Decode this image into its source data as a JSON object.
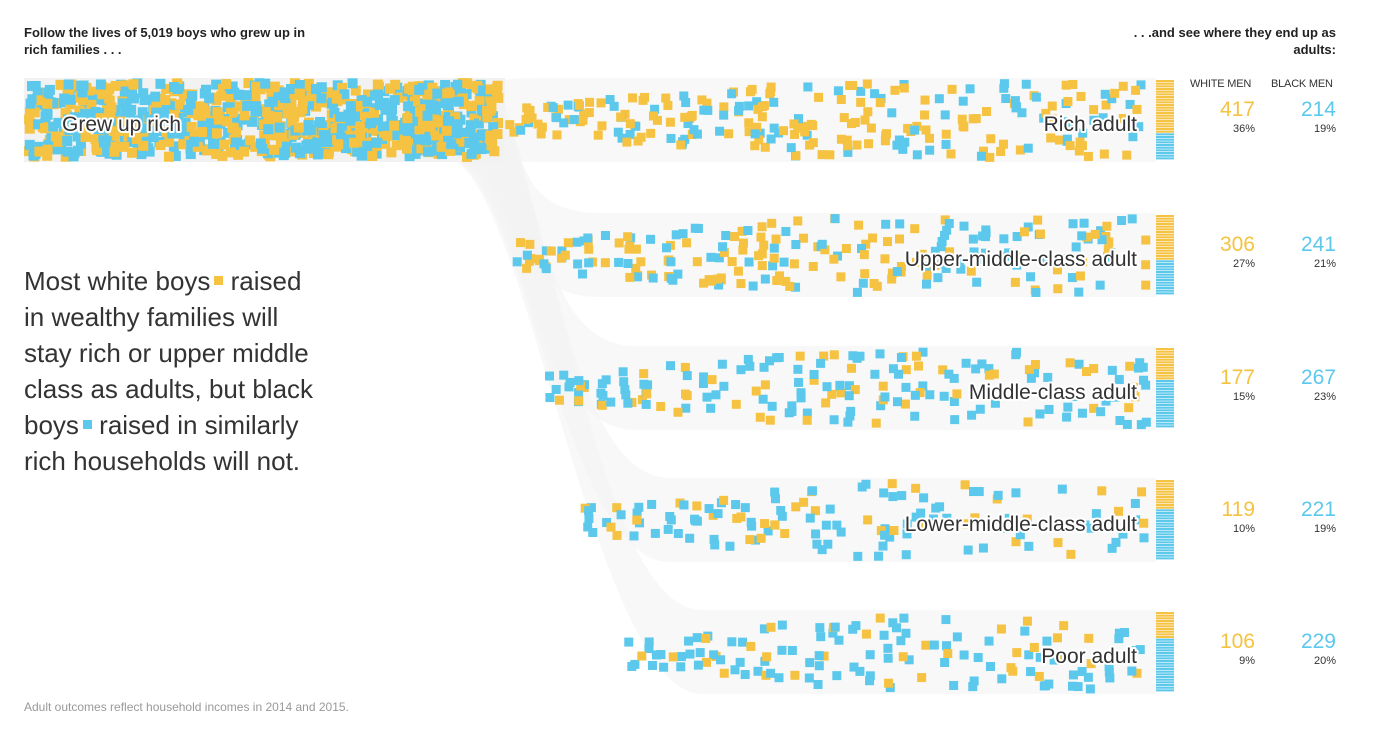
{
  "header": {
    "left_prefix": "Follow the lives of",
    "left_count": "5,019",
    "left_suffix": "boys who grew up in rich families . . .",
    "right": ". . .and see where they end up as adults:"
  },
  "columns": {
    "white": "WHITE MEN",
    "black": "BLACK MEN"
  },
  "story": {
    "part1": "Most white boys",
    "part2": "raised in wealthy families will stay rich or upper middle class as adults, but black boys",
    "part3": "raised in similarly rich households will not."
  },
  "note": "Adult outcomes reflect household incomes in 2014 and 2015.",
  "colors": {
    "white_men": "#f5c242",
    "black_men": "#5bc8ec",
    "flow_band": "#f2f2f2"
  },
  "chart_data": {
    "type": "flow",
    "source": "Grew up rich",
    "series": [
      {
        "name": "WHITE MEN",
        "color": "#f5c242"
      },
      {
        "name": "BLACK MEN",
        "color": "#5bc8ec"
      }
    ],
    "outcomes": [
      {
        "label": "Rich adult",
        "white": "417",
        "white_pct": "36%",
        "black": "214",
        "black_pct": "19%",
        "white_value": 417,
        "black_value": 214
      },
      {
        "label": "Upper-middle-class adult",
        "white": "306",
        "white_pct": "27%",
        "black": "241",
        "black_pct": "21%",
        "white_value": 306,
        "black_value": 241
      },
      {
        "label": "Middle-class adult",
        "white": "177",
        "white_pct": "15%",
        "black": "267",
        "black_pct": "23%",
        "white_value": 177,
        "black_value": 267
      },
      {
        "label": "Lower-middle-class adult",
        "white": "119",
        "white_pct": "10%",
        "black": "221",
        "black_pct": "19%",
        "white_value": 119,
        "black_value": 221
      },
      {
        "label": "Poor adult",
        "white": "106",
        "white_pct": "9%",
        "black": "229",
        "black_pct": "20%",
        "white_value": 106,
        "black_value": 229
      }
    ]
  }
}
